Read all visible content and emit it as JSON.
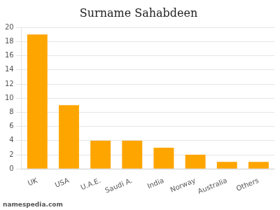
{
  "chart_data": {
    "type": "bar",
    "title": "Surname Sahabdeen",
    "categories": [
      "UK",
      "USA",
      "U.A.E.",
      "Saudi A.",
      "India",
      "Norway",
      "Australia",
      "Others"
    ],
    "values": [
      19,
      9,
      4,
      4,
      3,
      2,
      1,
      1
    ],
    "color": "#FFA500",
    "ylim": [
      0,
      20
    ],
    "yticks": [
      0,
      2,
      4,
      6,
      8,
      10,
      12,
      14,
      16,
      18,
      20
    ],
    "grid": true,
    "annotation": "namespedia.com"
  }
}
